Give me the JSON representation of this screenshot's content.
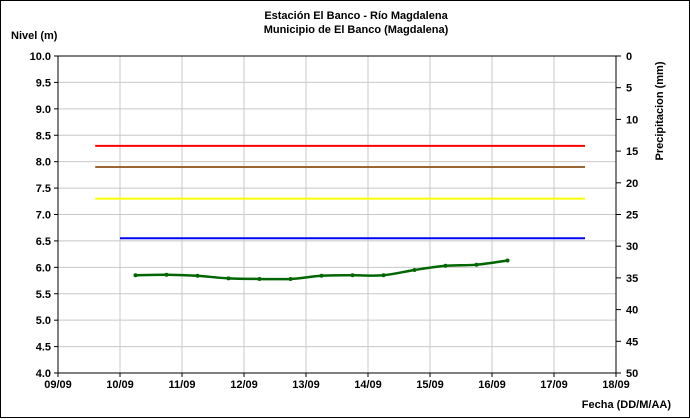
{
  "chart_data": {
    "type": "line",
    "title": [
      "Estación El Banco - Río Magdalena",
      "Municipio de El Banco (Magdalena)"
    ],
    "ylabel": "Nivel (m)",
    "y2label": "Precipitacion (mm)",
    "xlabel": "Fecha (DD/M/AA)",
    "ylim": [
      4.0,
      10.0
    ],
    "y_ticks": [
      "4.0",
      "4.5",
      "5.0",
      "5.5",
      "6.0",
      "6.5",
      "7.0",
      "7.5",
      "8.0",
      "8.5",
      "9.0",
      "9.5",
      "10.0"
    ],
    "y2lim": [
      0,
      50
    ],
    "y2_ticks": [
      "0",
      "5",
      "10",
      "15",
      "20",
      "25",
      "30",
      "35",
      "40",
      "45",
      "50"
    ],
    "x_ticks": [
      "09/09",
      "10/09",
      "11/09",
      "12/09",
      "13/09",
      "14/09",
      "15/09",
      "16/09",
      "17/09",
      "18/09"
    ],
    "grid": true,
    "threshold_lines": [
      {
        "color": "#ff0000",
        "y": 8.3,
        "x_start": 9.6,
        "x_end": 17.5
      },
      {
        "color": "#996633",
        "y": 7.9,
        "x_start": 9.6,
        "x_end": 17.5
      },
      {
        "color": "#ffff00",
        "y": 7.3,
        "x_start": 9.6,
        "x_end": 17.5
      },
      {
        "color": "#0000ff",
        "y": 6.55,
        "x_start": 10.0,
        "x_end": 17.5
      }
    ],
    "series": [
      {
        "color": "#006600",
        "x": [
          10.25,
          10.75,
          11.25,
          11.75,
          12.25,
          12.75,
          13.25,
          13.75,
          14.25,
          14.75,
          15.25,
          15.75,
          16.25
        ],
        "y": [
          5.85,
          5.86,
          5.84,
          5.79,
          5.78,
          5.78,
          5.84,
          5.85,
          5.85,
          5.95,
          6.03,
          6.05,
          6.13
        ]
      }
    ]
  }
}
